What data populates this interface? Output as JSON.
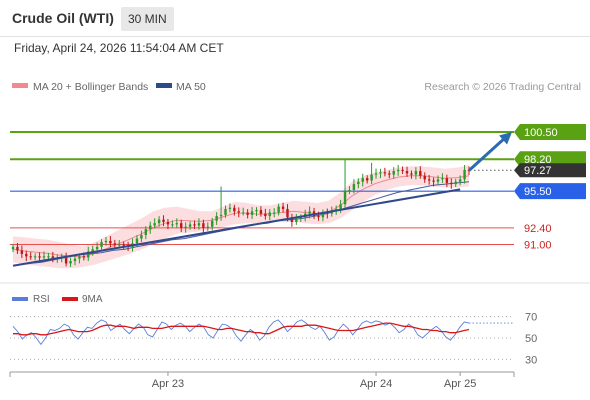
{
  "header": {
    "title": "Crude Oil (WTI)",
    "timeframe": "30 MIN"
  },
  "datetime": "Friday, April 24, 2026 11:54:04 AM CET",
  "legend": {
    "bollinger": "MA 20 + Bollinger Bands",
    "ma50": "MA 50",
    "credit": "Research © 2026 Trading Central"
  },
  "colors": {
    "green_line": "#5aa214",
    "blue_line": "#2962e8",
    "red_line": "#e85050",
    "trend": "#2f4a8a",
    "candle_up": "#2a9a2a",
    "candle_down": "#c01818",
    "bb_fill": "#fbd0d4",
    "ma50": "#4a5aa0",
    "price_label": "#333333",
    "rsi_line": "#5a7ed8",
    "rsi_ma": "#d81818"
  },
  "chart_data": [
    {
      "type": "candlestick",
      "title": "Crude Oil (WTI)",
      "timeframe": "30 MIN",
      "ylim": [
        88.0,
        103.2
      ],
      "x_ticks": [
        "Apr 23",
        "Apr 24",
        "Apr 25"
      ],
      "current_price": 97.27,
      "levels": [
        {
          "value": 100.5,
          "label": "100.50",
          "kind": "target-resistance",
          "color": "#5aa214"
        },
        {
          "value": 98.2,
          "label": "98.20",
          "kind": "resistance",
          "color": "#5aa214"
        },
        {
          "value": 95.5,
          "label": "95.50",
          "kind": "pivot",
          "color": "#2962e8"
        },
        {
          "value": 92.4,
          "label": "92.40",
          "kind": "support",
          "color": "#e85050"
        },
        {
          "value": 91.0,
          "label": "91.00",
          "kind": "support",
          "color": "#e85050"
        }
      ],
      "closes": [
        90.8,
        90.5,
        90.2,
        90.0,
        89.95,
        90.0,
        89.9,
        90.0,
        90.0,
        89.8,
        89.9,
        89.9,
        89.4,
        89.6,
        89.8,
        90.0,
        89.9,
        90.4,
        90.6,
        90.8,
        91.2,
        91.3,
        91.1,
        91.0,
        91.0,
        90.9,
        90.8,
        91.1,
        91.5,
        91.8,
        92.3,
        92.6,
        92.8,
        93.1,
        92.9,
        92.7,
        92.7,
        92.8,
        92.4,
        92.5,
        92.7,
        92.6,
        92.8,
        92.4,
        92.5,
        93.0,
        93.4,
        93.5,
        94.0,
        94.1,
        93.8,
        93.7,
        93.7,
        93.5,
        93.8,
        93.9,
        93.6,
        93.4,
        93.7,
        93.7,
        94.2,
        94.0,
        93.3,
        92.9,
        93.2,
        93.3,
        93.6,
        93.8,
        93.4,
        93.3,
        93.7,
        93.6,
        93.8,
        94.0,
        94.4,
        95.5,
        95.6,
        96.1,
        96.3,
        96.6,
        96.4,
        96.9,
        97.0,
        97.1,
        97.0,
        96.9,
        97.2,
        97.3,
        97.2,
        97.0,
        96.9,
        97.2,
        96.8,
        96.5,
        96.4,
        96.3,
        96.5,
        96.6,
        96.2,
        96.1,
        96.3,
        96.5,
        97.3,
        97.27
      ],
      "ma50": [
        89.3,
        89.4,
        89.5,
        89.7,
        89.9,
        90.1,
        90.2,
        90.3,
        90.5,
        90.6,
        90.8,
        91.0,
        91.2,
        91.4,
        91.5,
        91.7,
        91.9,
        92.1,
        92.3,
        92.5,
        92.7,
        92.8,
        93.0,
        93.1,
        93.2,
        93.4,
        93.6,
        93.9,
        94.2,
        94.5,
        94.8,
        95.1,
        95.4,
        95.6,
        95.8,
        96.0,
        96.1,
        96.2,
        96.3
      ],
      "bb_upper": [
        91.7,
        91.6,
        91.5,
        91.4,
        91.2,
        91.0,
        90.8,
        91.2,
        91.7,
        92.2,
        92.7,
        93.2,
        93.8,
        94.1,
        94.2,
        94.0,
        93.8,
        93.8,
        94.2,
        94.6,
        94.5,
        94.3,
        94.3,
        94.5,
        94.7,
        94.6,
        94.5,
        94.7,
        95.4,
        96.3,
        96.8,
        97.1,
        97.3,
        97.5,
        97.6,
        97.6,
        97.5,
        97.4,
        97.5,
        97.7
      ],
      "bb_lower": [
        89.5,
        89.3,
        89.2,
        89.1,
        89.0,
        89.0,
        89.1,
        89.3,
        89.6,
        89.9,
        90.2,
        90.6,
        91.0,
        91.5,
        91.9,
        92.0,
        92.1,
        92.3,
        92.5,
        92.7,
        92.8,
        92.8,
        92.9,
        92.9,
        92.9,
        92.8,
        92.7,
        92.8,
        93.2,
        93.9,
        94.6,
        95.2,
        95.6,
        95.9,
        96.0,
        96.0,
        95.9,
        95.8,
        95.8,
        95.9
      ],
      "trendline": {
        "from": [
          0,
          89.2
        ],
        "to": [
          101,
          95.65
        ]
      },
      "projection": {
        "from": [
          103,
          97.25
        ],
        "to": 100.5
      }
    },
    {
      "type": "line",
      "title": "RSI",
      "series": [
        {
          "name": "RSI",
          "values": [
            61,
            56,
            49,
            53,
            55,
            50,
            44,
            50,
            58,
            57,
            59,
            63,
            61,
            53,
            49,
            55,
            60,
            59,
            64,
            67,
            65,
            57,
            60,
            63,
            58,
            54,
            59,
            63,
            60,
            53,
            51,
            58,
            65,
            63,
            58,
            62,
            64,
            61,
            56,
            60,
            63,
            60,
            53,
            50,
            57,
            63,
            62,
            59,
            52,
            47,
            53,
            58,
            55,
            48,
            52,
            60,
            65,
            67,
            62,
            56,
            60,
            65,
            67,
            64,
            60,
            58,
            61,
            55,
            48,
            51,
            58,
            63,
            59,
            53,
            58,
            64,
            66,
            64,
            66,
            65,
            62,
            64,
            60,
            55,
            58,
            63,
            60,
            53,
            50,
            54,
            58,
            61,
            57,
            51,
            48,
            53,
            60,
            65,
            64
          ]
        },
        {
          "name": "9MA",
          "values": [
            54,
            54,
            53,
            53,
            54,
            54,
            53,
            53,
            54,
            55,
            56,
            57,
            58,
            57,
            56,
            56,
            56,
            57,
            59,
            61,
            62,
            62,
            61,
            61,
            61,
            60,
            59,
            60,
            60,
            60,
            59,
            59,
            59,
            60,
            61,
            61,
            61,
            61,
            61,
            61,
            61,
            61,
            60,
            59,
            58,
            58,
            59,
            59,
            58,
            57,
            56,
            56,
            55,
            55,
            54,
            54,
            56,
            58,
            60,
            61,
            61,
            61,
            61,
            62,
            62,
            62,
            61,
            60,
            59,
            58,
            57,
            57,
            57,
            57,
            58,
            59,
            60,
            61,
            62,
            63,
            64,
            64,
            63,
            62,
            61,
            61,
            60,
            59,
            58,
            58,
            57,
            57,
            56,
            56,
            55,
            55,
            56,
            57,
            58
          ]
        }
      ],
      "ylim": [
        20,
        80
      ],
      "y_ticks": [
        70,
        50,
        30
      ],
      "legend": [
        "RSI",
        "9MA"
      ]
    }
  ]
}
